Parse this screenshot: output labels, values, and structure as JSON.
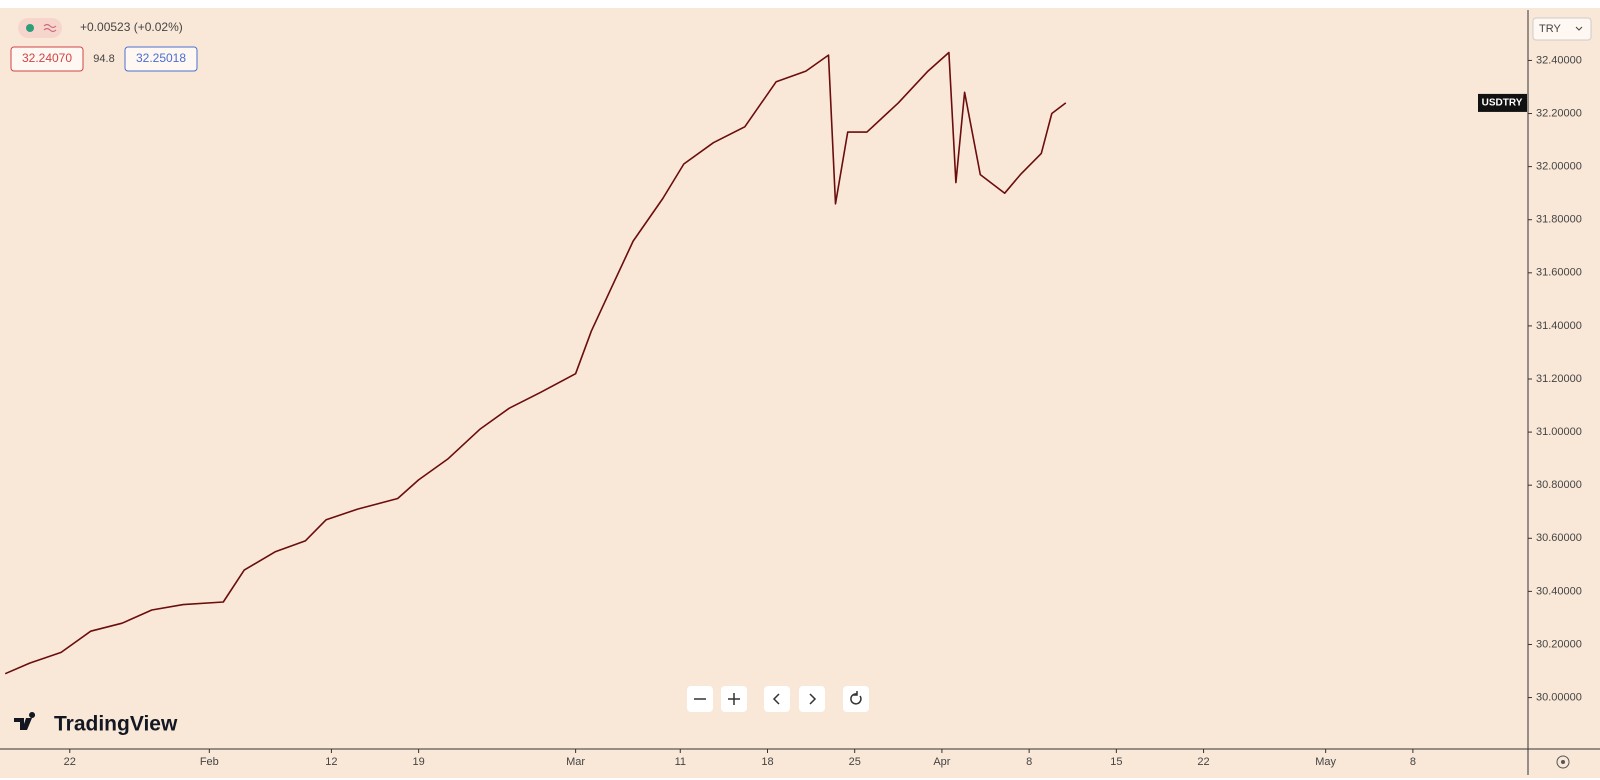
{
  "chart_data": {
    "type": "line",
    "ticker": "USDTRY",
    "currency": "TRY",
    "change": "+0.00523 (+0.02%)",
    "bid": "32.24070",
    "spread": "94.8",
    "ask": "32.25018",
    "brand": "TradingView",
    "series": [
      {
        "name": "USDTRY",
        "color": "#6b0d0d",
        "x": [
          -3.7,
          -2.3,
          -0.5,
          1.2,
          3.0,
          4.7,
          6.5,
          8.8,
          10.0,
          11.8,
          13.5,
          14.7,
          16.5,
          18.8,
          20.0,
          21.7,
          23.5,
          25.2,
          27.0,
          29.0,
          29.9,
          31.1,
          32.3,
          34.0,
          35.2,
          36.9,
          38.7,
          40.5,
          42.2,
          43.5,
          43.9,
          44.6,
          45.7,
          47.5,
          49.2,
          50.4,
          50.8,
          51.3,
          52.2,
          53.6,
          54.5,
          55.7,
          56.3,
          57.1
        ],
        "values": [
          30.09,
          30.13,
          30.17,
          30.25,
          30.28,
          30.33,
          30.35,
          30.36,
          30.48,
          30.55,
          30.59,
          30.67,
          30.71,
          30.75,
          30.82,
          30.9,
          31.01,
          31.09,
          31.15,
          31.22,
          31.38,
          31.55,
          31.72,
          31.88,
          32.01,
          32.09,
          32.15,
          32.32,
          32.36,
          32.42,
          31.86,
          32.13,
          32.13,
          32.24,
          32.36,
          32.43,
          31.94,
          32.28,
          31.97,
          31.9,
          31.97,
          32.05,
          32.2,
          32.24
        ]
      }
    ],
    "xlim": [
      -4,
      83.6
    ],
    "ylim": [
      29.81,
      32.59
    ],
    "xticks": [
      {
        "value": 0,
        "label": "22"
      },
      {
        "value": 8,
        "label": "Feb"
      },
      {
        "value": 15,
        "label": "12"
      },
      {
        "value": 20,
        "label": "19"
      },
      {
        "value": 29,
        "label": "Mar"
      },
      {
        "value": 35,
        "label": "11"
      },
      {
        "value": 40,
        "label": "18"
      },
      {
        "value": 45,
        "label": "25"
      },
      {
        "value": 50,
        "label": "Apr"
      },
      {
        "value": 55,
        "label": "8"
      },
      {
        "value": 60,
        "label": "15"
      },
      {
        "value": 65,
        "label": "22"
      },
      {
        "value": 72,
        "label": "May"
      },
      {
        "value": 77,
        "label": "8"
      }
    ],
    "yticks": [
      {
        "value": 30.0,
        "label": "30.00000"
      },
      {
        "value": 30.2,
        "label": "30.20000"
      },
      {
        "value": 30.4,
        "label": "30.40000"
      },
      {
        "value": 30.6,
        "label": "30.60000"
      },
      {
        "value": 30.8,
        "label": "30.80000"
      },
      {
        "value": 31.0,
        "label": "31.00000"
      },
      {
        "value": 31.2,
        "label": "31.20000"
      },
      {
        "value": 31.4,
        "label": "31.40000"
      },
      {
        "value": 31.6,
        "label": "31.60000"
      },
      {
        "value": 31.8,
        "label": "31.80000"
      },
      {
        "value": 32.0,
        "label": "32.00000"
      },
      {
        "value": 32.2,
        "label": "32.20000"
      },
      {
        "value": 32.4,
        "label": "32.40000"
      }
    ]
  }
}
